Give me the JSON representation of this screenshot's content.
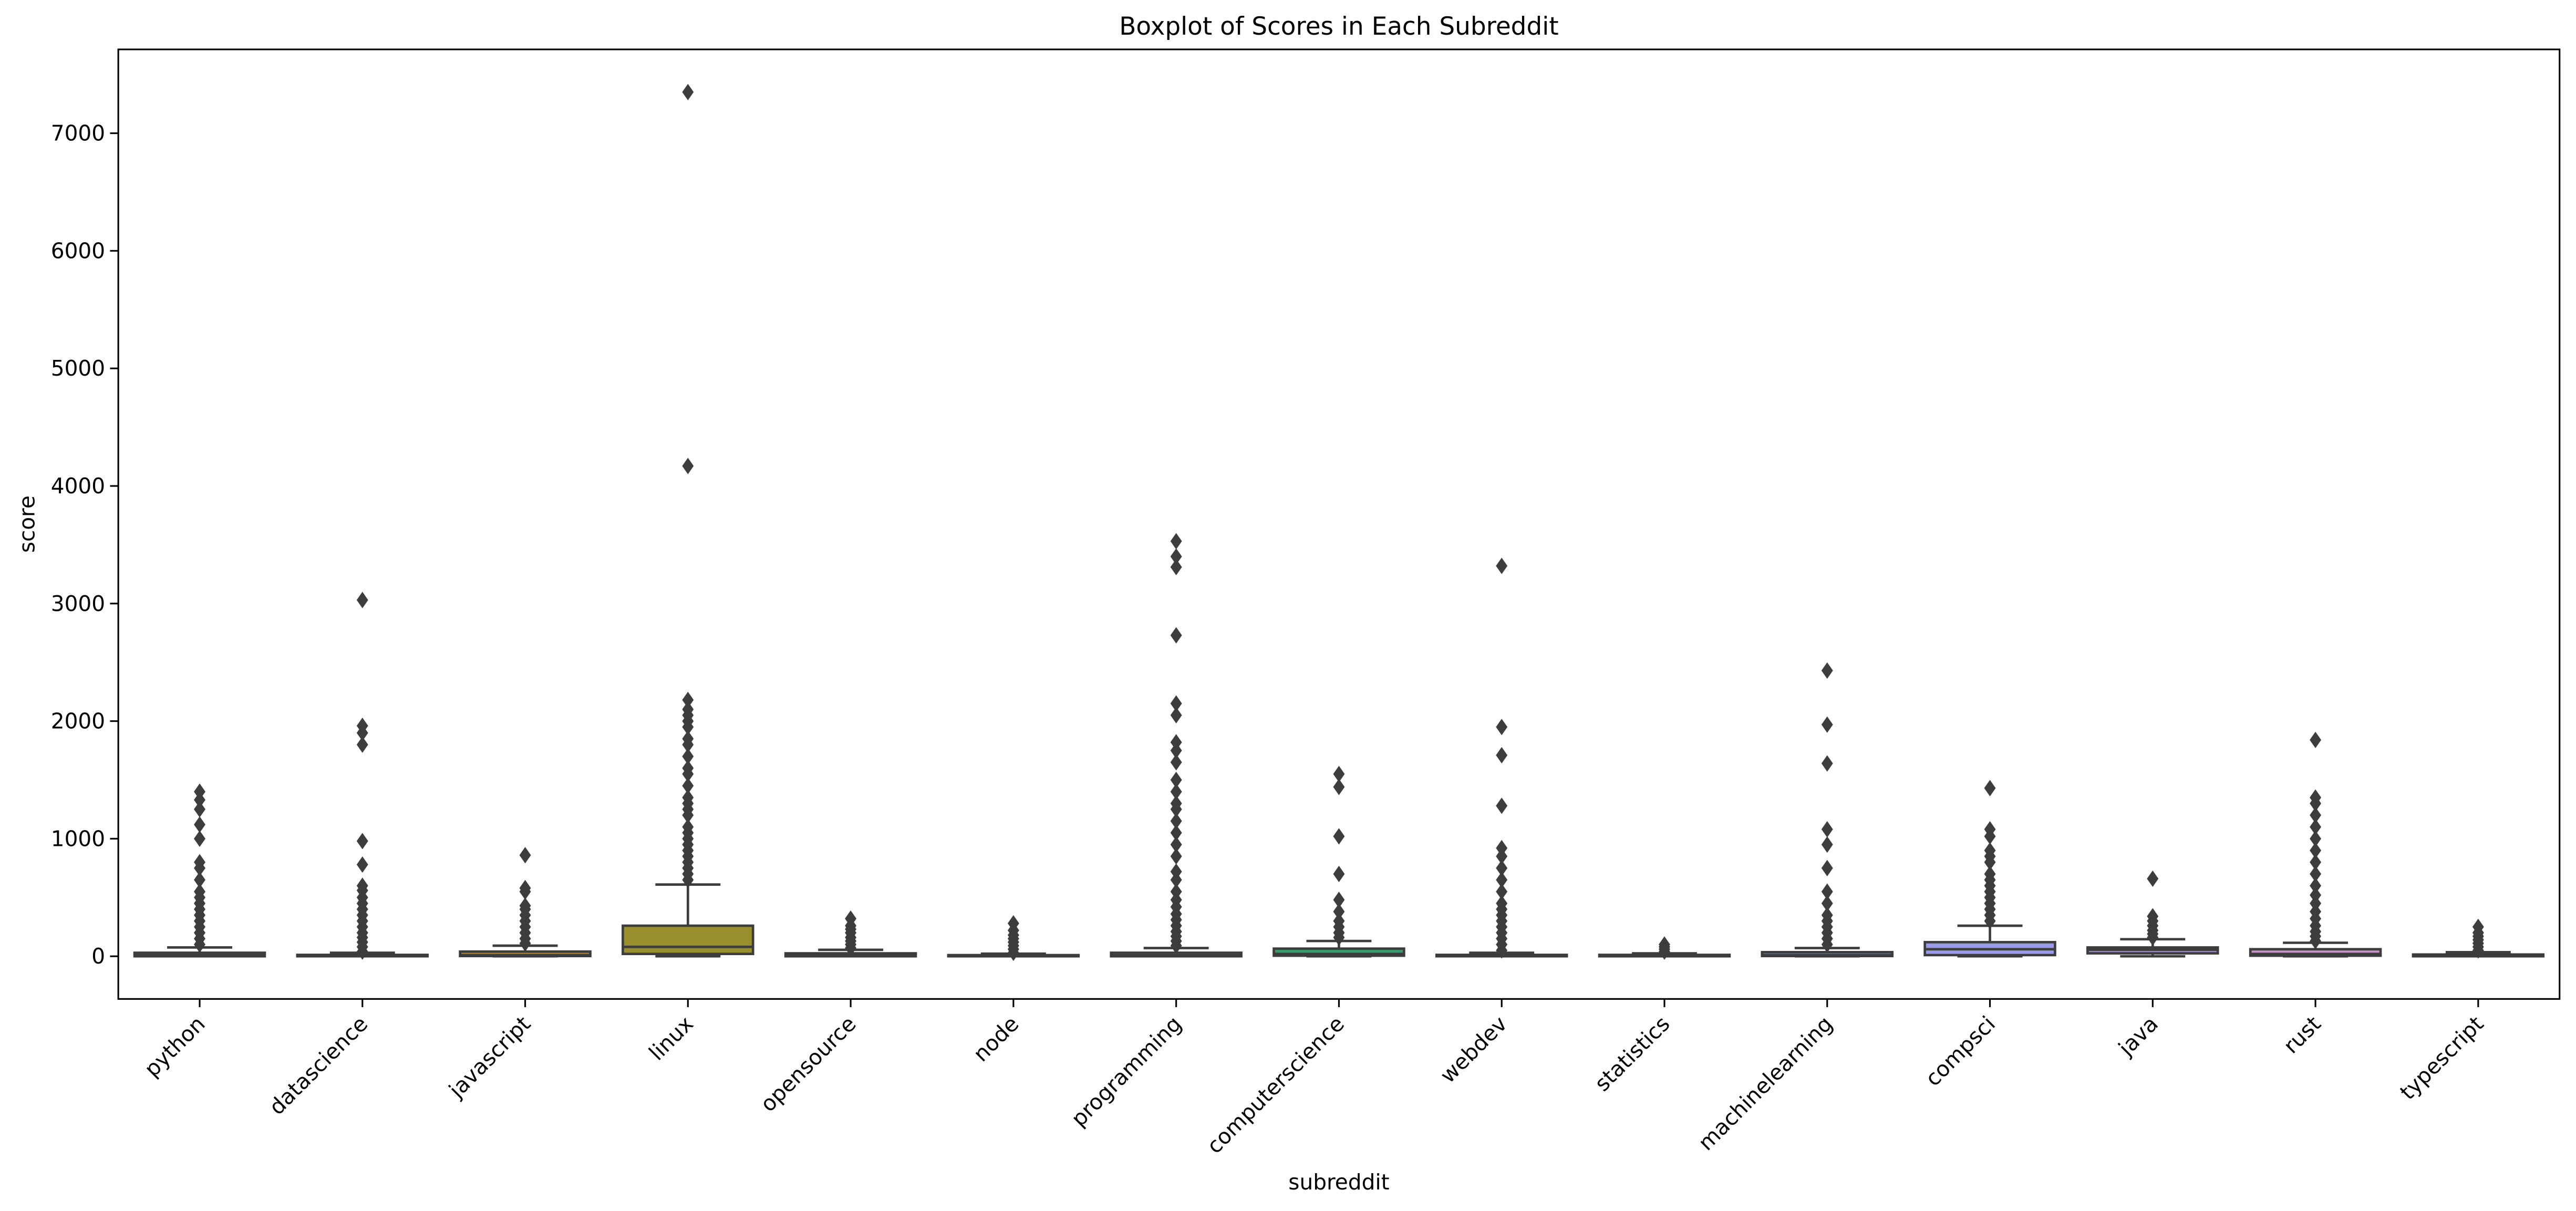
{
  "chart_data": {
    "type": "boxplot",
    "title": "Boxplot of Scores in Each Subreddit",
    "xlabel": "subreddit",
    "ylabel": "score",
    "categories": [
      "python",
      "datascience",
      "javascript",
      "linux",
      "opensource",
      "node",
      "programming",
      "computerscience",
      "webdev",
      "statistics",
      "machinelearning",
      "compsci",
      "java",
      "rust",
      "typescript"
    ],
    "colors": [
      "#d46a72",
      "#c97a3e",
      "#b08a32",
      "#9a8f30",
      "#7d9a32",
      "#3da14a",
      "#3d9e7b",
      "#3a9a6e",
      "#3f99a2",
      "#4094b7",
      "#5c8ccf",
      "#9a9ae8",
      "#a88fd8",
      "#c68fc0",
      "#d08aa8"
    ],
    "boxes": [
      {
        "whislo": 0,
        "q1": 0,
        "median": 10,
        "q3": 30,
        "whishi": 75,
        "fliers": [
          100,
          150,
          200,
          250,
          300,
          350,
          400,
          450,
          500,
          550,
          650,
          750,
          800,
          1000,
          1120,
          1250,
          1330,
          1400
        ]
      },
      {
        "whislo": 0,
        "q1": 0,
        "median": 3,
        "q3": 12,
        "whishi": 30,
        "fliers": [
          40,
          80,
          120,
          160,
          200,
          250,
          300,
          350,
          400,
          450,
          500,
          560,
          600,
          780,
          980,
          1800,
          1900,
          1960,
          3030
        ]
      },
      {
        "whislo": 0,
        "q1": 2,
        "median": 10,
        "q3": 40,
        "whishi": 90,
        "fliers": [
          110,
          150,
          200,
          250,
          300,
          350,
          400,
          430,
          550,
          580,
          860
        ]
      },
      {
        "whislo": 0,
        "q1": 20,
        "median": 80,
        "q3": 260,
        "whishi": 610,
        "fliers": [
          650,
          700,
          750,
          800,
          850,
          900,
          950,
          1000,
          1050,
          1100,
          1200,
          1250,
          1300,
          1350,
          1450,
          1550,
          1600,
          1700,
          1800,
          1850,
          1950,
          2000,
          2050,
          2100,
          2180,
          4170,
          7350
        ]
      },
      {
        "whislo": 0,
        "q1": 0,
        "median": 10,
        "q3": 25,
        "whishi": 55,
        "fliers": [
          70,
          100,
          130,
          160,
          200,
          230,
          260,
          320
        ]
      },
      {
        "whislo": 0,
        "q1": 0,
        "median": 3,
        "q3": 10,
        "whishi": 22,
        "fliers": [
          30,
          60,
          90,
          120,
          150,
          180,
          220,
          280
        ]
      },
      {
        "whislo": 0,
        "q1": 0,
        "median": 8,
        "q3": 30,
        "whishi": 70,
        "fliers": [
          90,
          130,
          170,
          210,
          260,
          310,
          360,
          420,
          480,
          550,
          650,
          720,
          850,
          950,
          1050,
          1150,
          1250,
          1300,
          1400,
          1500,
          1650,
          1750,
          1820,
          2050,
          2150,
          2730,
          3310,
          3400,
          3530
        ]
      },
      {
        "whislo": 0,
        "q1": 5,
        "median": 20,
        "q3": 65,
        "whishi": 130,
        "fliers": [
          160,
          200,
          250,
          300,
          380,
          480,
          700,
          1020,
          1440,
          1550
        ]
      },
      {
        "whislo": 0,
        "q1": 0,
        "median": 3,
        "q3": 12,
        "whishi": 30,
        "fliers": [
          50,
          100,
          150,
          200,
          250,
          300,
          350,
          400,
          450,
          550,
          650,
          750,
          850,
          920,
          1280,
          1710,
          1950,
          3320
        ]
      },
      {
        "whislo": 0,
        "q1": 0,
        "median": 5,
        "q3": 12,
        "whishi": 25,
        "fliers": [
          40,
          60,
          80,
          100
        ]
      },
      {
        "whislo": 0,
        "q1": 2,
        "median": 10,
        "q3": 35,
        "whishi": 70,
        "fliers": [
          100,
          150,
          200,
          250,
          300,
          350,
          450,
          550,
          750,
          950,
          1080,
          1640,
          1970,
          2430
        ]
      },
      {
        "whislo": 0,
        "q1": 10,
        "median": 60,
        "q3": 120,
        "whishi": 260,
        "fliers": [
          300,
          350,
          400,
          450,
          500,
          550,
          600,
          650,
          700,
          800,
          850,
          900,
          1020,
          1080,
          1430
        ]
      },
      {
        "whislo": 0,
        "q1": 25,
        "median": 55,
        "q3": 75,
        "whishi": 145,
        "fliers": [
          160,
          190,
          220,
          260,
          300,
          340,
          660
        ]
      },
      {
        "whislo": 0,
        "q1": 5,
        "median": 20,
        "q3": 60,
        "whishi": 115,
        "fliers": [
          130,
          170,
          210,
          260,
          320,
          380,
          450,
          520,
          600,
          700,
          800,
          900,
          1000,
          1100,
          1200,
          1300,
          1350,
          1840
        ]
      },
      {
        "whislo": 0,
        "q1": 0,
        "median": 5,
        "q3": 15,
        "whishi": 35,
        "fliers": [
          50,
          80,
          110,
          140,
          170,
          200,
          250
        ]
      }
    ],
    "ylim": [
      -363,
      7713
    ],
    "yticks": [
      0,
      1000,
      2000,
      3000,
      4000,
      5000,
      6000,
      7000
    ]
  }
}
